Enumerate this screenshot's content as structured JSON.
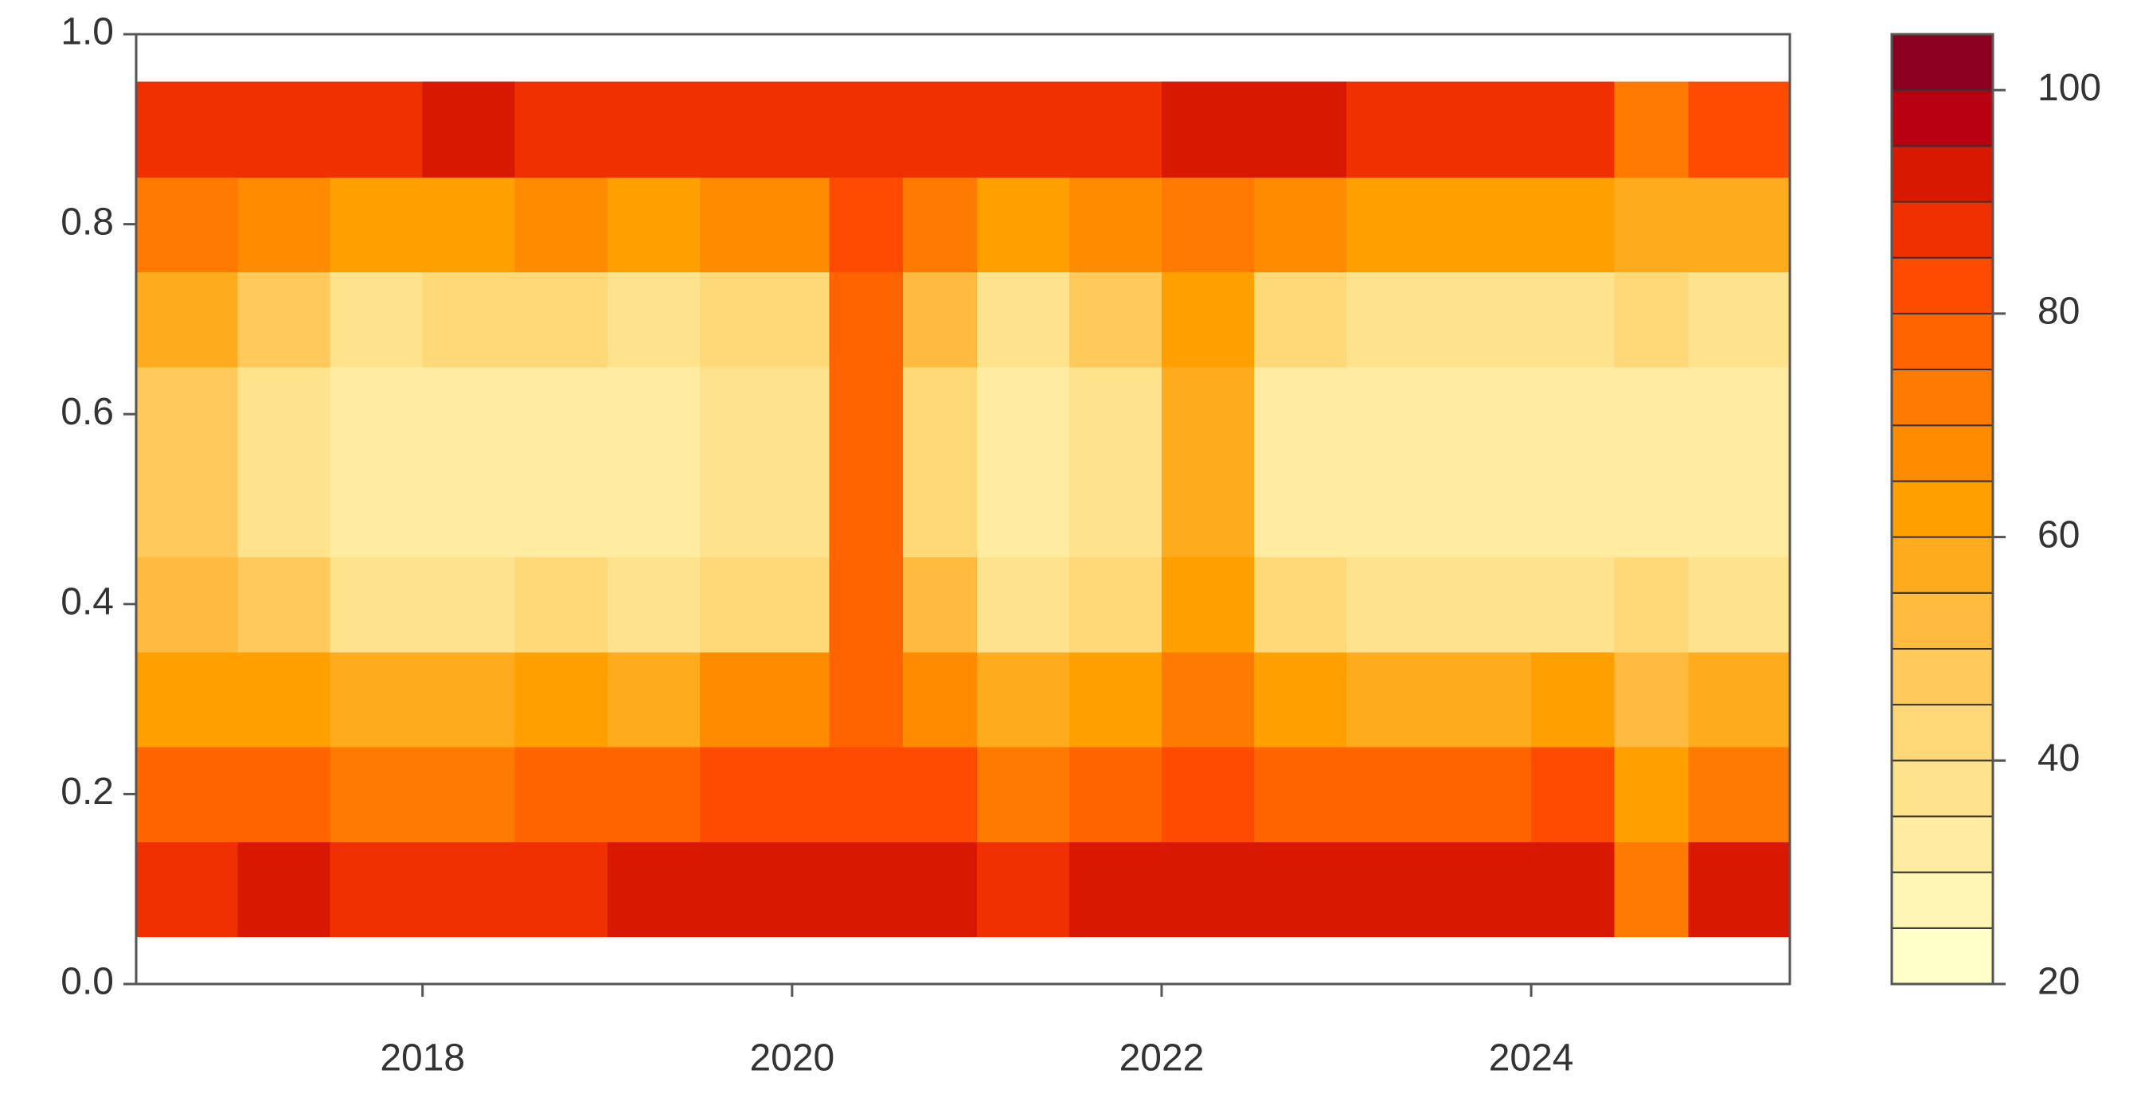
{
  "chart_data": {
    "type": "heatmap",
    "x": [
      2016.45,
      2017,
      2017.5,
      2018,
      2018.5,
      2019,
      2019.5,
      2020.2,
      2020.6,
      2021,
      2021.5,
      2022,
      2022.5,
      2023,
      2023.5,
      2024,
      2024.45,
      2024.85,
      2025.4
    ],
    "y": [
      0.05,
      0.15,
      0.25,
      0.35,
      0.45,
      0.55,
      0.65,
      0.75,
      0.85,
      0.95
    ],
    "z": [
      [
        88,
        75,
        62,
        52,
        48,
        48,
        55,
        70,
        88
      ],
      [
        90,
        78,
        62,
        45,
        38,
        38,
        45,
        66,
        88
      ],
      [
        88,
        72,
        55,
        36,
        30,
        30,
        38,
        62,
        86
      ],
      [
        88,
        74,
        56,
        38,
        32,
        32,
        40,
        64,
        90
      ],
      [
        88,
        76,
        60,
        40,
        34,
        34,
        42,
        66,
        88
      ],
      [
        90,
        76,
        58,
        38,
        30,
        30,
        38,
        62,
        86
      ],
      [
        92,
        80,
        65,
        42,
        35,
        35,
        42,
        66,
        88
      ],
      [
        92,
        82,
        78,
        76,
        76,
        76,
        78,
        82,
        88
      ],
      [
        90,
        80,
        66,
        50,
        42,
        42,
        50,
        70,
        88
      ],
      [
        88,
        74,
        55,
        36,
        30,
        30,
        38,
        60,
        86
      ],
      [
        90,
        78,
        62,
        44,
        38,
        38,
        46,
        66,
        88
      ],
      [
        92,
        82,
        72,
        62,
        58,
        58,
        62,
        74,
        90
      ],
      [
        90,
        78,
        60,
        40,
        32,
        32,
        42,
        66,
        92
      ],
      [
        90,
        76,
        58,
        38,
        30,
        30,
        38,
        62,
        88
      ],
      [
        90,
        76,
        58,
        36,
        30,
        30,
        38,
        62,
        88
      ],
      [
        92,
        80,
        60,
        38,
        30,
        30,
        38,
        64,
        88
      ],
      [
        72,
        62,
        52,
        40,
        34,
        34,
        42,
        58,
        70
      ],
      [
        90,
        74,
        55,
        36,
        30,
        30,
        36,
        58,
        82
      ]
    ],
    "levels": [
      20,
      25,
      30,
      35,
      40,
      45,
      50,
      55,
      60,
      65,
      70,
      75,
      80,
      85,
      90,
      95,
      100,
      105
    ],
    "colors": [
      "#ffffc8",
      "#fff5b5",
      "#ffeca0",
      "#ffe38c",
      "#ffd878",
      "#ffc95c",
      "#ffbb40",
      "#ffab1e",
      "#ffa000",
      "#ff8c00",
      "#ff7a00",
      "#ff6400",
      "#ff4b00",
      "#f03000",
      "#d81800",
      "#b80010",
      "#8b0020"
    ],
    "xlim": [
      2016.45,
      2025.4
    ],
    "ylim": [
      0,
      1
    ],
    "zlim": [
      20,
      105
    ],
    "xticks": [
      2018,
      2020,
      2022,
      2024
    ],
    "yticks": [
      {
        "value": 0,
        "label": "0.0"
      },
      0.2,
      0.4,
      0.6,
      0.8,
      {
        "value": 1,
        "label": "1.0"
      }
    ],
    "zticks": [
      20,
      40,
      60,
      80,
      100
    ]
  }
}
